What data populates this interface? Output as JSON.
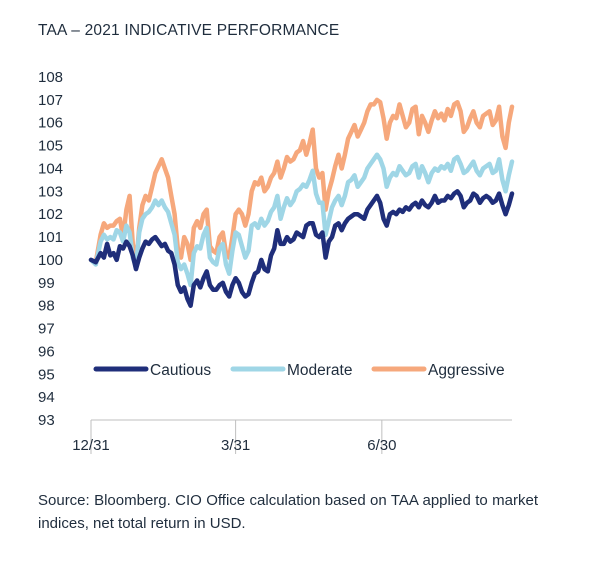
{
  "title": "TAA – 2021 INDICATIVE PERFORMANCE",
  "source": "Source: Bloomberg. CIO Office calculation based on TAA applied to market indices, net total return in USD.",
  "chart_data": {
    "type": "line",
    "title": "TAA – 2021 INDICATIVE PERFORMANCE",
    "xlabel": "",
    "ylabel": "",
    "x": [
      0,
      3,
      6,
      8,
      10,
      12,
      14,
      16,
      18,
      20,
      22,
      24,
      26,
      28,
      30,
      32,
      34,
      36,
      38,
      40,
      42,
      44,
      46,
      48,
      50,
      52,
      54,
      56,
      58,
      60,
      62,
      64,
      66,
      68,
      70,
      72,
      74,
      76,
      78,
      80,
      82,
      84,
      86,
      88,
      90,
      92,
      94,
      96,
      98,
      100,
      102,
      104,
      106,
      108,
      110,
      112,
      114,
      116,
      118,
      120,
      122,
      124,
      126,
      128,
      130,
      132,
      134,
      136,
      138,
      140,
      142,
      144,
      146,
      148,
      150,
      152,
      154,
      156,
      158,
      160,
      162,
      164,
      166,
      168,
      170,
      172,
      174,
      176,
      178,
      180,
      182,
      184,
      186,
      188,
      190,
      192,
      194,
      196,
      198,
      200,
      202,
      204,
      206,
      208,
      210,
      212,
      214,
      216,
      218,
      220,
      222,
      224,
      226,
      228,
      230,
      232,
      234,
      236,
      238,
      240,
      242,
      244,
      246,
      248,
      250,
      252,
      254,
      256,
      258,
      260,
      262
    ],
    "xlim": [
      0,
      262
    ],
    "xticks": [
      {
        "value": 0,
        "label": "12/31"
      },
      {
        "value": 90,
        "label": "3/31"
      },
      {
        "value": 181,
        "label": "6/30"
      }
    ],
    "ylim": [
      93,
      108
    ],
    "yticks": [
      93,
      94,
      95,
      96,
      97,
      98,
      99,
      100,
      101,
      102,
      103,
      104,
      105,
      106,
      107,
      108
    ],
    "grid": false,
    "legend": "inside-bottom",
    "series": [
      {
        "name": "Cautious",
        "color": "#1f2e7a",
        "values": [
          100.0,
          99.9,
          100.3,
          100.1,
          100.7,
          100.2,
          100.3,
          100.0,
          100.6,
          100.5,
          100.8,
          100.6,
          100.2,
          99.6,
          100.1,
          100.5,
          100.8,
          100.7,
          100.9,
          101.0,
          100.8,
          100.6,
          100.7,
          100.4,
          100.3,
          99.8,
          98.9,
          98.6,
          98.8,
          98.3,
          98.0,
          98.9,
          99.1,
          98.8,
          99.2,
          99.5,
          98.9,
          98.7,
          98.7,
          98.9,
          99.0,
          98.6,
          98.4,
          98.9,
          99.2,
          99.0,
          98.6,
          98.4,
          98.5,
          99.0,
          99.4,
          99.5,
          100.0,
          99.6,
          99.5,
          100.2,
          100.5,
          101.3,
          100.7,
          100.7,
          101.0,
          100.8,
          100.9,
          101.2,
          101.1,
          101.0,
          101.5,
          101.6,
          101.6,
          101.1,
          101.0,
          101.2,
          100.1,
          100.8,
          101.0,
          101.5,
          101.6,
          101.3,
          101.6,
          101.8,
          101.9,
          102.0,
          102.0,
          101.9,
          101.8,
          102.2,
          102.4,
          102.6,
          102.8,
          102.5,
          101.8,
          101.5,
          102.0,
          102.1,
          102.0,
          102.2,
          102.1,
          102.3,
          102.2,
          102.4,
          102.5,
          102.3,
          102.6,
          102.4,
          102.3,
          102.5,
          102.8,
          102.5,
          102.6,
          102.6,
          102.8,
          102.7,
          102.9,
          103.0,
          102.8,
          102.3,
          102.5,
          102.6,
          102.9,
          102.8,
          102.5,
          102.7,
          102.8,
          102.7,
          102.5,
          102.6,
          102.9,
          102.4,
          102.0,
          102.4,
          102.9
        ]
      },
      {
        "name": "Moderate",
        "color": "#9fd6e6",
        "values": [
          100.0,
          99.8,
          100.8,
          101.1,
          100.9,
          101.0,
          100.9,
          101.3,
          101.2,
          100.8,
          101.5,
          101.2,
          100.1,
          99.7,
          101.2,
          101.8,
          102.0,
          102.1,
          102.3,
          102.6,
          102.4,
          102.6,
          102.3,
          102.1,
          101.6,
          101.1,
          99.9,
          99.6,
          99.8,
          99.4,
          98.9,
          100.3,
          100.6,
          100.5,
          101.1,
          101.4,
          100.1,
          99.9,
          99.8,
          100.5,
          100.7,
          99.8,
          99.4,
          100.4,
          101.2,
          101.1,
          100.6,
          100.1,
          100.4,
          101.5,
          101.6,
          101.4,
          101.8,
          101.5,
          101.7,
          102.1,
          102.3,
          102.8,
          101.8,
          102.3,
          102.7,
          102.4,
          102.6,
          103.0,
          103.1,
          103.3,
          103.2,
          103.5,
          103.9,
          102.9,
          102.5,
          102.5,
          101.1,
          101.7,
          102.3,
          102.6,
          102.8,
          102.4,
          102.8,
          103.4,
          103.5,
          103.7,
          103.2,
          103.4,
          103.6,
          104.0,
          104.2,
          104.4,
          104.6,
          104.4,
          104.0,
          103.2,
          103.6,
          103.8,
          103.7,
          104.1,
          103.9,
          103.7,
          103.8,
          104.1,
          104.2,
          103.6,
          104.1,
          103.8,
          103.4,
          103.8,
          104.0,
          103.9,
          104.1,
          104.0,
          104.2,
          103.9,
          104.4,
          104.5,
          104.2,
          103.8,
          103.9,
          104.1,
          104.3,
          103.9,
          103.7,
          104.0,
          104.1,
          104.2,
          103.8,
          103.9,
          104.4,
          103.5,
          103.0,
          103.7,
          104.3
        ]
      },
      {
        "name": "Aggressive",
        "color": "#f6a87c",
        "values": [
          100.0,
          99.9,
          101.1,
          101.6,
          101.4,
          101.5,
          101.5,
          101.7,
          101.8,
          101.0,
          102.2,
          102.8,
          100.7,
          99.8,
          101.4,
          102.4,
          102.8,
          102.6,
          103.2,
          103.8,
          104.1,
          104.4,
          104.0,
          103.6,
          102.8,
          102.0,
          100.5,
          100.1,
          101.0,
          100.7,
          100.0,
          101.4,
          101.7,
          101.4,
          102.0,
          102.2,
          100.6,
          100.4,
          100.3,
          101.0,
          101.2,
          100.3,
          100.1,
          101.0,
          102.0,
          102.2,
          102.0,
          101.5,
          102.0,
          103.0,
          103.4,
          103.3,
          103.6,
          103.0,
          103.2,
          103.6,
          103.8,
          104.3,
          103.6,
          104.0,
          104.5,
          104.3,
          104.4,
          104.7,
          104.8,
          105.2,
          104.6,
          105.1,
          105.7,
          104.0,
          103.6,
          103.8,
          102.2,
          103.0,
          103.5,
          104.1,
          104.6,
          104.0,
          104.6,
          105.3,
          105.6,
          105.9,
          105.4,
          105.7,
          106.0,
          106.5,
          106.8,
          106.8,
          107.0,
          106.9,
          106.2,
          105.3,
          106.0,
          106.3,
          106.2,
          106.8,
          106.3,
          105.8,
          106.0,
          106.6,
          106.7,
          105.5,
          106.3,
          106.0,
          105.6,
          106.1,
          106.5,
          106.2,
          106.4,
          106.1,
          106.6,
          106.3,
          106.8,
          106.9,
          106.5,
          105.6,
          105.8,
          106.2,
          106.5,
          106.0,
          105.8,
          106.3,
          106.4,
          106.5,
          105.9,
          106.1,
          106.7,
          105.4,
          104.9,
          106.0,
          106.7
        ]
      }
    ]
  }
}
